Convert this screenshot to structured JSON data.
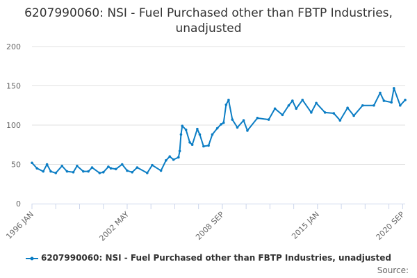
{
  "chart_data": {
    "type": "line",
    "title": "6207990060: NSI - Fuel Purchased other than FBTP Industries, unadjusted",
    "xlabel": "",
    "ylabel": "",
    "ylim": [
      0,
      200
    ],
    "yticks": [
      0,
      50,
      100,
      150,
      200
    ],
    "xlim": [
      "1996-01",
      "2020-11"
    ],
    "xtick_labels": [
      {
        "date": "1996-01",
        "label": "1996 JAN"
      },
      {
        "date": "2002-05",
        "label": "2002 MAY"
      },
      {
        "date": "2008-09",
        "label": "2008 SEP"
      },
      {
        "date": "2015-01",
        "label": "2015 JAN"
      },
      {
        "date": "2020-09",
        "label": "2020 SEP"
      }
    ],
    "grid": true,
    "legend_position": "bottom",
    "color": "#0b7dc4",
    "series": [
      {
        "name": "6207990060: NSI - Fuel Purchased other than FBTP Industries, unadjusted",
        "x": [
          "1996-01",
          "1996-05",
          "1996-10",
          "1997-01",
          "1997-04",
          "1997-08",
          "1998-01",
          "1998-05",
          "1998-10",
          "1999-01",
          "1999-06",
          "1999-10",
          "2000-01",
          "2000-07",
          "2000-10",
          "2001-02",
          "2001-04",
          "2001-08",
          "2002-01",
          "2002-05",
          "2002-09",
          "2003-01",
          "2003-09",
          "2004-01",
          "2004-08",
          "2004-12",
          "2005-03",
          "2005-06",
          "2005-10",
          "2005-11",
          "2005-12",
          "2006-01",
          "2006-04",
          "2006-07",
          "2006-09",
          "2007-01",
          "2007-03",
          "2007-06",
          "2007-10",
          "2008-01",
          "2008-05",
          "2008-08",
          "2008-10",
          "2008-12",
          "2009-02",
          "2009-05",
          "2009-09",
          "2010-02",
          "2010-05",
          "2011-01",
          "2011-10",
          "2012-03",
          "2012-09",
          "2013-02",
          "2013-05",
          "2013-08",
          "2014-01",
          "2014-08",
          "2014-12",
          "2015-07",
          "2016-02",
          "2016-07",
          "2017-01",
          "2017-06",
          "2018-01",
          "2018-10",
          "2019-03",
          "2019-06",
          "2019-12",
          "2020-02",
          "2020-07",
          "2020-11"
        ],
        "values": [
          52,
          45,
          41,
          50,
          41,
          39,
          48,
          41,
          40,
          48,
          41,
          41,
          46,
          39,
          40,
          47,
          45,
          44,
          50,
          42,
          40,
          46,
          39,
          49,
          42,
          55,
          60,
          56,
          59,
          67,
          88,
          99,
          94,
          78,
          75,
          95,
          88,
          73,
          74,
          88,
          96,
          101,
          103,
          126,
          132,
          107,
          97,
          106,
          93,
          109,
          107,
          121,
          113,
          125,
          131,
          121,
          132,
          116,
          128,
          116,
          115,
          106,
          122,
          112,
          125,
          125,
          141,
          131,
          129,
          147,
          125,
          132
        ]
      }
    ]
  },
  "source_label": "Source:"
}
